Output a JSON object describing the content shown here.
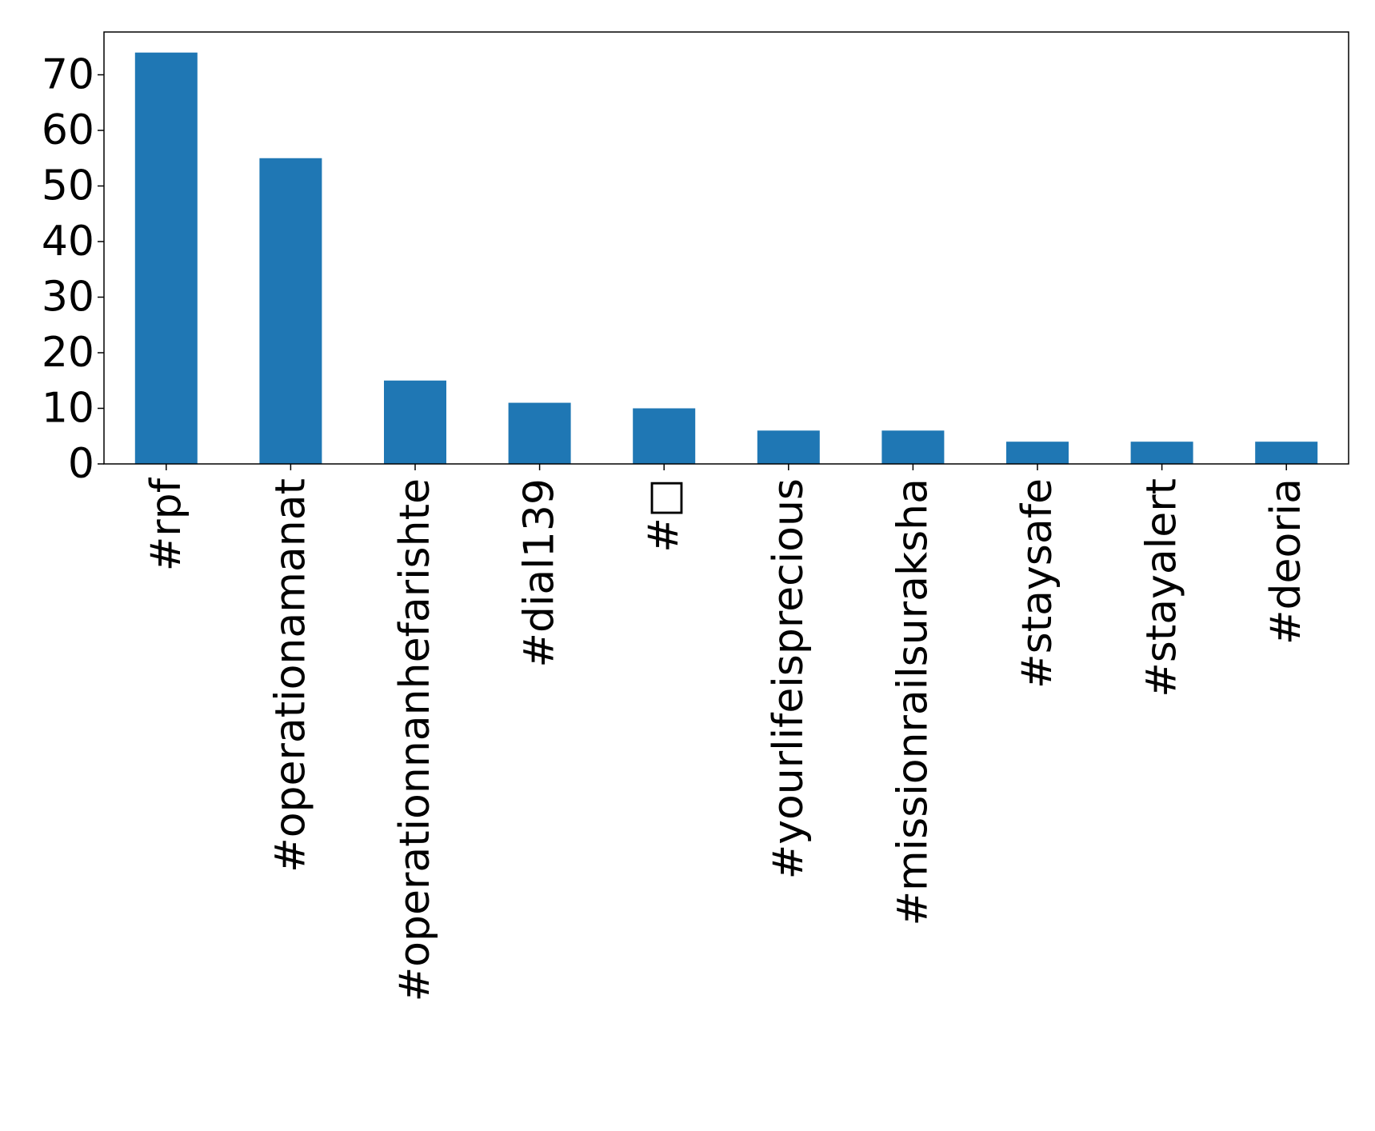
{
  "chart_data": {
    "type": "bar",
    "categories": [
      "#rpf",
      "#operationamanat",
      "#operationnanhefarishte",
      "#dial139",
      "#□",
      "#yourlifeisprecious",
      "#missionrailsuraksha",
      "#staysafe",
      "#stayalert",
      "#deoria"
    ],
    "values": [
      74,
      55,
      15,
      11,
      10,
      6,
      6,
      4,
      4,
      4
    ],
    "ylim": [
      0,
      77.7
    ],
    "yticks": [
      0,
      10,
      20,
      30,
      40,
      50,
      60,
      70
    ],
    "ytick_labels": [
      "0",
      "10",
      "20",
      "30",
      "40",
      "50",
      "60",
      "70"
    ],
    "xlabel": "",
    "ylabel": "",
    "title": "",
    "grid": false,
    "bar_color": "#1f77b4"
  }
}
